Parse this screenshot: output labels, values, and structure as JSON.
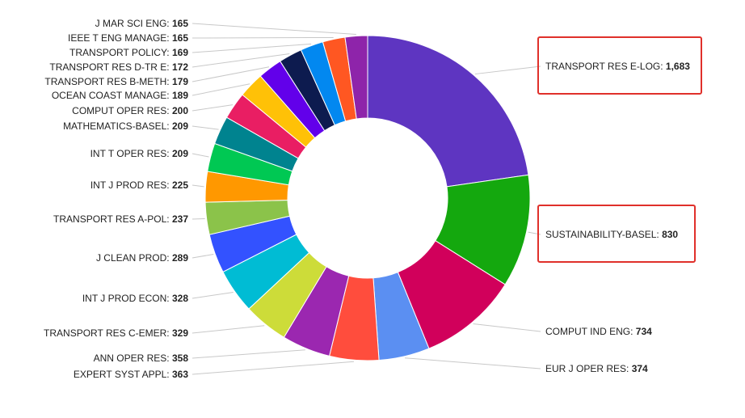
{
  "chart_data": {
    "type": "pie",
    "variant": "donut",
    "title": "",
    "legend": "none",
    "slices": [
      {
        "label": "TRANSPORT RES E-LOG",
        "value": 1683,
        "display": "1,683",
        "color": "#5e35c1",
        "highlighted": true
      },
      {
        "label": "SUSTAINABILITY-BASEL",
        "value": 830,
        "display": "830",
        "color": "#14a80e",
        "highlighted": true
      },
      {
        "label": "COMPUT IND ENG",
        "value": 734,
        "display": "734",
        "color": "#d1005b",
        "highlighted": false
      },
      {
        "label": "EUR J OPER RES",
        "value": 374,
        "display": "374",
        "color": "#5b8ff2",
        "highlighted": false
      },
      {
        "label": "EXPERT SYST APPL",
        "value": 363,
        "display": "363",
        "color": "#ff4d3d",
        "highlighted": false
      },
      {
        "label": "ANN OPER RES",
        "value": 358,
        "display": "358",
        "color": "#9b27b0",
        "highlighted": false
      },
      {
        "label": "TRANSPORT RES C-EMER",
        "value": 329,
        "display": "329",
        "color": "#cddc39",
        "highlighted": false
      },
      {
        "label": "INT J PROD ECON",
        "value": 328,
        "display": "328",
        "color": "#00bcd4",
        "highlighted": false
      },
      {
        "label": "J CLEAN PROD",
        "value": 289,
        "display": "289",
        "color": "#3352ff",
        "highlighted": false
      },
      {
        "label": "TRANSPORT RES A-POL",
        "value": 237,
        "display": "237",
        "color": "#8bc34a",
        "highlighted": false
      },
      {
        "label": "INT J PROD RES",
        "value": 225,
        "display": "225",
        "color": "#ff9800",
        "highlighted": false
      },
      {
        "label": "INT T OPER RES",
        "value": 209,
        "display": "209",
        "color": "#00c853",
        "highlighted": false
      },
      {
        "label": "MATHEMATICS-BASEL",
        "value": 209,
        "display": "209",
        "color": "#00838f",
        "highlighted": false
      },
      {
        "label": "COMPUT OPER RES",
        "value": 200,
        "display": "200",
        "color": "#e91e63",
        "highlighted": false
      },
      {
        "label": "OCEAN COAST MANAGE",
        "value": 189,
        "display": "189",
        "color": "#ffc107",
        "highlighted": false
      },
      {
        "label": "TRANSPORT RES B-METH",
        "value": 179,
        "display": "179",
        "color": "#6200ea",
        "highlighted": false
      },
      {
        "label": "TRANSPORT RES D-TR E",
        "value": 172,
        "display": "172",
        "color": "#0d1b4f",
        "highlighted": false
      },
      {
        "label": "TRANSPORT POLICY",
        "value": 169,
        "display": "169",
        "color": "#0288f0",
        "highlighted": false
      },
      {
        "label": "IEEE T ENG MANAGE",
        "value": 165,
        "display": "165",
        "color": "#ff5722",
        "highlighted": false
      },
      {
        "label": "J MAR SCI ENG",
        "value": 165,
        "display": "165",
        "color": "#8e24aa",
        "highlighted": false
      }
    ]
  }
}
